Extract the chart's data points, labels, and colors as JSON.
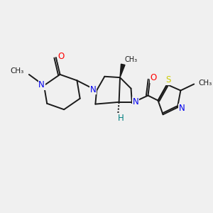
{
  "bg_color": "#F0F0F0",
  "bond_color": "#1a1a1a",
  "N_color": "#0000EE",
  "O_color": "#FF0000",
  "S_color": "#CCCC00",
  "H_color": "#008080",
  "figsize": [
    3.0,
    3.0
  ],
  "dpi": 100,
  "xlim": [
    0,
    10
  ],
  "ylim": [
    0,
    10
  ]
}
